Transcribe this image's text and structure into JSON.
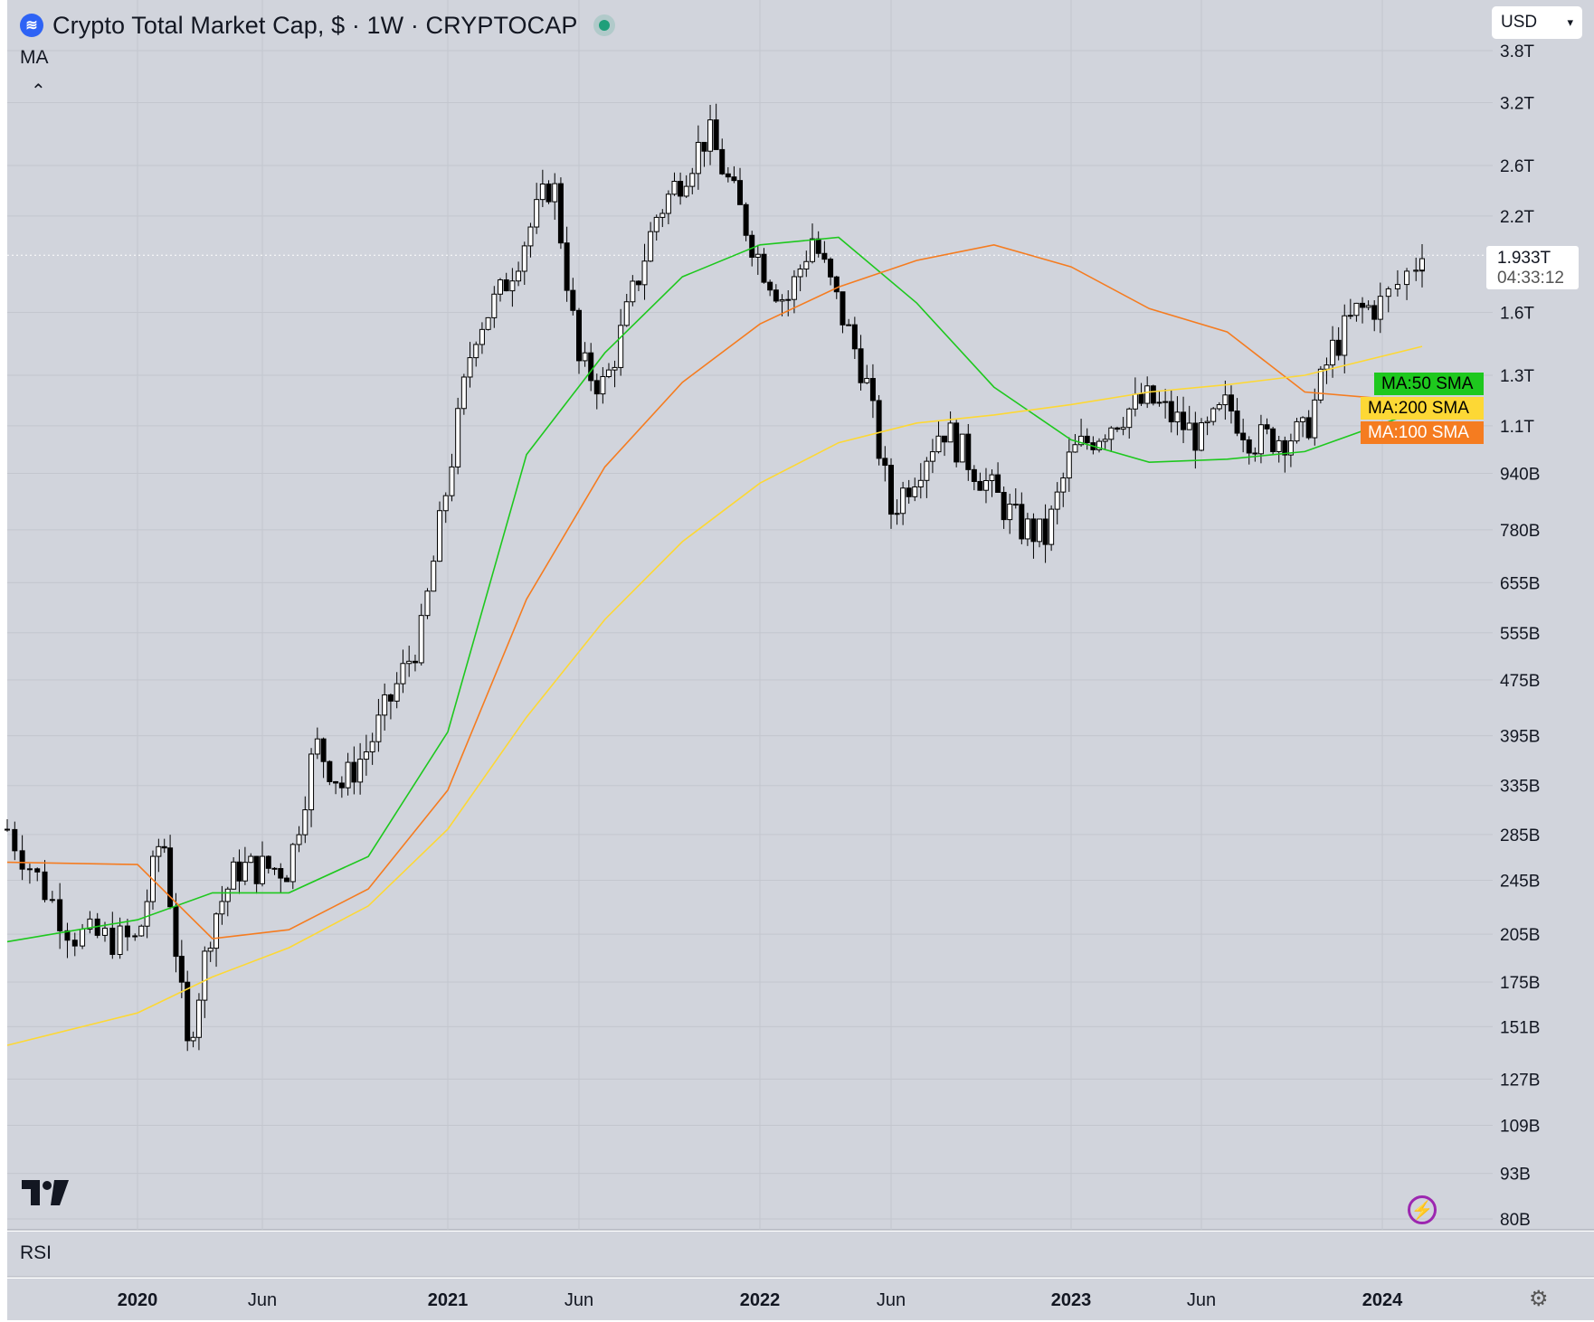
{
  "header": {
    "title": "Crypto Total Market Cap, $ · 1W · CRYPTOCAP",
    "indicator": "MA",
    "currency": "USD"
  },
  "price_label": {
    "price": "1.933T",
    "countdown": "04:33:12"
  },
  "ma_tags": [
    {
      "label": "MA:50 SMA",
      "color": "#1ec81e",
      "text_color": "#000000"
    },
    {
      "label": "MA:200 SMA",
      "color": "#fdd835",
      "text_color": "#000000"
    },
    {
      "label": "MA:100 SMA",
      "color": "#f57c20",
      "text_color": "#ffffff"
    }
  ],
  "rsi_label": "RSI",
  "colors": {
    "background": "#d1d4dc",
    "up": "#ffffff",
    "down": "#000000",
    "ma50": "#1ec81e",
    "ma100": "#f57c20",
    "ma200": "#fdd835"
  },
  "chart_data": {
    "type": "candlestick",
    "title": "Crypto Total Market Cap, $ · 1W · CRYPTOCAP",
    "y_scale": "log",
    "y_ticks": [
      "3.8T",
      "3.2T",
      "2.6T",
      "2.2T",
      "1.6T",
      "1.3T",
      "1.1T",
      "940B",
      "780B",
      "655B",
      "555B",
      "475B",
      "395B",
      "335B",
      "285B",
      "245B",
      "205B",
      "175B",
      "151B",
      "127B",
      "109B",
      "93B",
      "80B"
    ],
    "x_ticks": [
      "2020",
      "Jun",
      "2021",
      "Jun",
      "2022",
      "Jun",
      "2023",
      "Jun",
      "2024"
    ],
    "last_price": "1.933T",
    "approx_close_path_billion": [
      {
        "date": "2019-09",
        "close": 290
      },
      {
        "date": "2019-11",
        "close": 205
      },
      {
        "date": "2020-01",
        "close": 200
      },
      {
        "date": "2020-02",
        "close": 290
      },
      {
        "date": "2020-03",
        "close": 140
      },
      {
        "date": "2020-04",
        "close": 215
      },
      {
        "date": "2020-05",
        "close": 255
      },
      {
        "date": "2020-07",
        "close": 255
      },
      {
        "date": "2020-08",
        "close": 385
      },
      {
        "date": "2020-09",
        "close": 335
      },
      {
        "date": "2020-10",
        "close": 380
      },
      {
        "date": "2020-12",
        "close": 555
      },
      {
        "date": "2021-01",
        "close": 920
      },
      {
        "date": "2021-02",
        "close": 1500
      },
      {
        "date": "2021-03",
        "close": 1700
      },
      {
        "date": "2021-05",
        "close": 2500
      },
      {
        "date": "2021-06",
        "close": 1350
      },
      {
        "date": "2021-07",
        "close": 1250
      },
      {
        "date": "2021-09",
        "close": 2200
      },
      {
        "date": "2021-11",
        "close": 2900
      },
      {
        "date": "2022-01",
        "close": 1900
      },
      {
        "date": "2022-02",
        "close": 1650
      },
      {
        "date": "2022-03",
        "close": 2050
      },
      {
        "date": "2022-05",
        "close": 1300
      },
      {
        "date": "2022-06",
        "close": 830
      },
      {
        "date": "2022-08",
        "close": 1100
      },
      {
        "date": "2022-10",
        "close": 880
      },
      {
        "date": "2022-11",
        "close": 790
      },
      {
        "date": "2022-12",
        "close": 760
      },
      {
        "date": "2023-01",
        "close": 1000
      },
      {
        "date": "2023-03",
        "close": 1150
      },
      {
        "date": "2023-04",
        "close": 1200
      },
      {
        "date": "2023-06",
        "close": 1050
      },
      {
        "date": "2023-07",
        "close": 1180
      },
      {
        "date": "2023-08",
        "close": 1050
      },
      {
        "date": "2023-10",
        "close": 1070
      },
      {
        "date": "2023-11",
        "close": 1400
      },
      {
        "date": "2023-12",
        "close": 1600
      },
      {
        "date": "2024-01",
        "close": 1650
      },
      {
        "date": "2024-02",
        "close": 1933
      }
    ],
    "moving_averages": [
      {
        "name": "MA:50 SMA",
        "points": [
          [
            "2019-09",
            200
          ],
          [
            "2020-01",
            215
          ],
          [
            "2020-04",
            235
          ],
          [
            "2020-07",
            235
          ],
          [
            "2020-10",
            265
          ],
          [
            "2021-01",
            400
          ],
          [
            "2021-04",
            1000
          ],
          [
            "2021-07",
            1400
          ],
          [
            "2021-10",
            1800
          ],
          [
            "2022-01",
            2000
          ],
          [
            "2022-04",
            2050
          ],
          [
            "2022-07",
            1650
          ],
          [
            "2022-10",
            1250
          ],
          [
            "2023-01",
            1050
          ],
          [
            "2023-04",
            975
          ],
          [
            "2023-07",
            985
          ],
          [
            "2023-10",
            1010
          ],
          [
            "2024-02",
            1160
          ]
        ]
      },
      {
        "name": "MA:100 SMA",
        "points": [
          [
            "2019-09",
            260
          ],
          [
            "2020-01",
            258
          ],
          [
            "2020-04",
            202
          ],
          [
            "2020-07",
            208
          ],
          [
            "2020-10",
            238
          ],
          [
            "2021-01",
            330
          ],
          [
            "2021-04",
            620
          ],
          [
            "2021-07",
            960
          ],
          [
            "2021-10",
            1270
          ],
          [
            "2022-01",
            1540
          ],
          [
            "2022-04",
            1740
          ],
          [
            "2022-07",
            1900
          ],
          [
            "2022-10",
            2000
          ],
          [
            "2023-01",
            1860
          ],
          [
            "2023-04",
            1620
          ],
          [
            "2023-07",
            1500
          ],
          [
            "2023-10",
            1230
          ],
          [
            "2024-02",
            1190
          ]
        ]
      },
      {
        "name": "MA:200 SMA",
        "points": [
          [
            "2019-09",
            142
          ],
          [
            "2020-01",
            158
          ],
          [
            "2020-04",
            178
          ],
          [
            "2020-07",
            196
          ],
          [
            "2020-10",
            225
          ],
          [
            "2021-01",
            290
          ],
          [
            "2021-04",
            420
          ],
          [
            "2021-07",
            580
          ],
          [
            "2021-10",
            750
          ],
          [
            "2022-01",
            910
          ],
          [
            "2022-04",
            1040
          ],
          [
            "2022-07",
            1110
          ],
          [
            "2022-10",
            1140
          ],
          [
            "2023-01",
            1180
          ],
          [
            "2023-04",
            1230
          ],
          [
            "2023-07",
            1260
          ],
          [
            "2023-10",
            1300
          ],
          [
            "2024-02",
            1430
          ]
        ]
      }
    ]
  }
}
